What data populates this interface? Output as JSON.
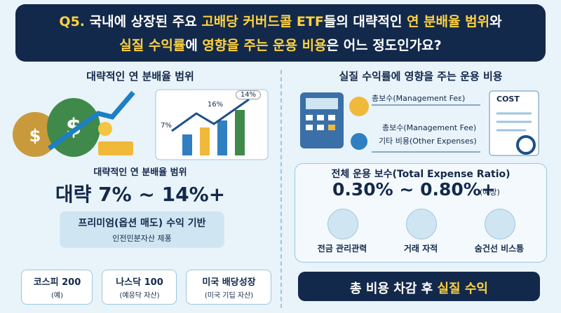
{
  "header": {
    "title_lines": [
      [
        {
          "text": "Q5. ",
          "highlight": true
        },
        {
          "text": "국내에 상장된 주요 ",
          "highlight": false
        },
        {
          "text": "고배당 커버드콜 ETF",
          "highlight": true
        },
        {
          "text": "들의 대략적인 ",
          "highlight": false
        },
        {
          "text": "연 분배율 범위",
          "highlight": true
        },
        {
          "text": "와",
          "highlight": false
        }
      ],
      [
        {
          "text": "실질 수익률",
          "highlight": true
        },
        {
          "text": "에 ",
          "highlight": false
        },
        {
          "text": "영향을 주는 운용 비용",
          "highlight": true
        },
        {
          "text": "은 어느 정도인가요?",
          "highlight": false
        }
      ]
    ]
  },
  "left": {
    "heading": "대략적인 연 분배율 범위",
    "chart_labels": [
      "7%",
      "16%",
      "14%"
    ],
    "subheading": "대략적인 연 분배율 범위",
    "range": "대략 7% ~ 14%+",
    "basis": {
      "title": "프리미엄(옵션 매도) 수익 기반",
      "subtitle": "인전민분자산 제퐁"
    },
    "examples": [
      {
        "name": "코스피 200",
        "note": "(예)"
      },
      {
        "name": "나스닥 100",
        "note": "(예응닥 자산)"
      },
      {
        "name": "미국 배당성장",
        "note": "(미국 기딥 자산)"
      }
    ]
  },
  "right": {
    "heading": "실질 수익률에 영향을 주는 운용 비용",
    "doc_label": "COST",
    "fee_labels": [
      "총보수(Management Feε)",
      "총보수(Management Fee)",
      "기타 비용(Other Expenses)"
    ],
    "ter": {
      "title": "전체 운용 보수(Total Expense Ratio)",
      "range": "0.30% ~ 0.80%+",
      "note": "(예상)",
      "items": [
        "전금 관리관력",
        "거래 자적",
        "숨건선 비스틍"
      ]
    },
    "banner": [
      {
        "text": "총 비용 차감 후 ",
        "highlight": false
      },
      {
        "text": "실질 수익",
        "highlight": true
      }
    ]
  }
}
